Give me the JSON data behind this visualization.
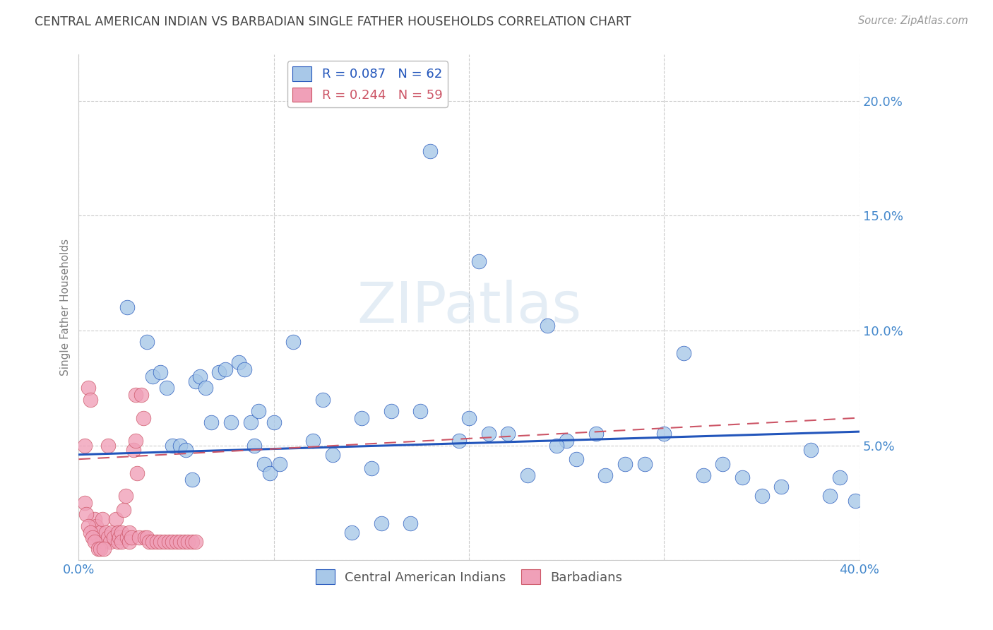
{
  "title": "CENTRAL AMERICAN INDIAN VS BARBADIAN SINGLE FATHER HOUSEHOLDS CORRELATION CHART",
  "source": "Source: ZipAtlas.com",
  "ylabel": "Single Father Households",
  "xlabel": "",
  "watermark": "ZIPatlas",
  "xlim": [
    0.0,
    0.4
  ],
  "ylim": [
    0.0,
    0.22
  ],
  "xticks": [
    0.0,
    0.1,
    0.2,
    0.3,
    0.4
  ],
  "yticks": [
    0.0,
    0.05,
    0.1,
    0.15,
    0.2
  ],
  "ytick_labels": [
    "",
    "5.0%",
    "10.0%",
    "15.0%",
    "20.0%"
  ],
  "xtick_labels": [
    "0.0%",
    "",
    "",
    "",
    "40.0%"
  ],
  "legend1_label": "Central American Indians",
  "legend2_label": "Barbadians",
  "R1": 0.087,
  "N1": 62,
  "R2": 0.244,
  "N2": 59,
  "color1": "#a8c8e8",
  "color2": "#f0a0b8",
  "line1_color": "#2255bb",
  "line2_color": "#cc5566",
  "grid_color": "#cccccc",
  "title_color": "#404040",
  "axis_label_color": "#808080",
  "tick_color": "#4488cc",
  "background": "#ffffff",
  "blue_line_x": [
    0.0,
    0.4
  ],
  "blue_line_y": [
    0.046,
    0.056
  ],
  "pink_line_x": [
    0.0,
    0.4
  ],
  "pink_line_y": [
    0.044,
    0.062
  ],
  "blue_scatter_x": [
    0.025,
    0.035,
    0.038,
    0.042,
    0.045,
    0.048,
    0.052,
    0.055,
    0.058,
    0.06,
    0.062,
    0.065,
    0.068,
    0.072,
    0.075,
    0.078,
    0.082,
    0.085,
    0.088,
    0.09,
    0.092,
    0.095,
    0.098,
    0.1,
    0.103,
    0.11,
    0.12,
    0.125,
    0.13,
    0.14,
    0.145,
    0.15,
    0.155,
    0.16,
    0.17,
    0.175,
    0.18,
    0.195,
    0.2,
    0.205,
    0.22,
    0.23,
    0.24,
    0.25,
    0.255,
    0.265,
    0.27,
    0.28,
    0.29,
    0.3,
    0.31,
    0.32,
    0.33,
    0.34,
    0.35,
    0.36,
    0.375,
    0.385,
    0.39,
    0.398,
    0.21,
    0.245
  ],
  "blue_scatter_y": [
    0.11,
    0.095,
    0.08,
    0.082,
    0.075,
    0.05,
    0.05,
    0.048,
    0.035,
    0.078,
    0.08,
    0.075,
    0.06,
    0.082,
    0.083,
    0.06,
    0.086,
    0.083,
    0.06,
    0.05,
    0.065,
    0.042,
    0.038,
    0.06,
    0.042,
    0.095,
    0.052,
    0.07,
    0.046,
    0.012,
    0.062,
    0.04,
    0.016,
    0.065,
    0.016,
    0.065,
    0.178,
    0.052,
    0.062,
    0.13,
    0.055,
    0.037,
    0.102,
    0.052,
    0.044,
    0.055,
    0.037,
    0.042,
    0.042,
    0.055,
    0.09,
    0.037,
    0.042,
    0.036,
    0.028,
    0.032,
    0.048,
    0.028,
    0.036,
    0.026,
    0.055,
    0.05
  ],
  "pink_scatter_x": [
    0.003,
    0.005,
    0.006,
    0.008,
    0.009,
    0.01,
    0.011,
    0.012,
    0.012,
    0.013,
    0.014,
    0.015,
    0.015,
    0.016,
    0.017,
    0.018,
    0.019,
    0.02,
    0.02,
    0.021,
    0.022,
    0.022,
    0.023,
    0.024,
    0.025,
    0.026,
    0.026,
    0.027,
    0.028,
    0.029,
    0.029,
    0.03,
    0.031,
    0.032,
    0.033,
    0.034,
    0.035,
    0.036,
    0.038,
    0.04,
    0.042,
    0.044,
    0.046,
    0.048,
    0.05,
    0.052,
    0.054,
    0.056,
    0.058,
    0.06,
    0.003,
    0.004,
    0.005,
    0.006,
    0.007,
    0.008,
    0.01,
    0.011,
    0.013
  ],
  "pink_scatter_y": [
    0.05,
    0.075,
    0.07,
    0.018,
    0.015,
    0.01,
    0.012,
    0.008,
    0.018,
    0.008,
    0.012,
    0.01,
    0.05,
    0.008,
    0.012,
    0.01,
    0.018,
    0.008,
    0.012,
    0.01,
    0.012,
    0.008,
    0.022,
    0.028,
    0.01,
    0.012,
    0.008,
    0.01,
    0.048,
    0.072,
    0.052,
    0.038,
    0.01,
    0.072,
    0.062,
    0.01,
    0.01,
    0.008,
    0.008,
    0.008,
    0.008,
    0.008,
    0.008,
    0.008,
    0.008,
    0.008,
    0.008,
    0.008,
    0.008,
    0.008,
    0.025,
    0.02,
    0.015,
    0.012,
    0.01,
    0.008,
    0.005,
    0.005,
    0.005
  ]
}
